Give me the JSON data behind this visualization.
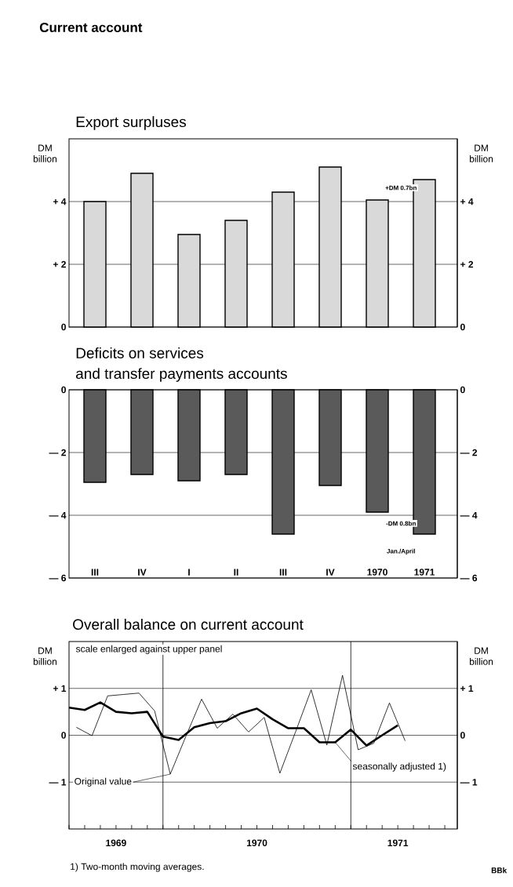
{
  "chart_data": [
    {
      "type": "bar",
      "title": "Current account",
      "subtitle": "Export surpluses",
      "ylabel": "DM billion",
      "y2label": "DM billion",
      "categories": [
        null,
        null,
        null,
        null,
        null,
        null,
        null,
        null
      ],
      "values": [
        4.0,
        4.9,
        2.95,
        3.4,
        4.3,
        5.1,
        4.05,
        4.7
      ],
      "color": "#d9d9d9",
      "ylim": [
        0,
        6
      ],
      "yticks": [
        0,
        {
          "value": 2,
          "label": "+ 2"
        },
        {
          "value": 4,
          "label": "+ 4"
        }
      ],
      "y2lim": [
        0,
        6
      ],
      "y2ticks": [
        0,
        {
          "value": 2,
          "label": "+ 2"
        },
        {
          "value": 4,
          "label": "+ 4"
        }
      ],
      "grid": "y",
      "annotations": [
        "+DM 0.7bn"
      ]
    },
    {
      "type": "bar",
      "title": "Deficits on services",
      "subtitle": "and transfer payments accounts",
      "categories": [
        "III",
        "IV",
        "I",
        "II",
        "III",
        "IV",
        "1970",
        "1971"
      ],
      "values": [
        -2.95,
        -2.7,
        -2.9,
        -2.7,
        -4.6,
        -3.05,
        -3.9,
        -4.6
      ],
      "color": "#5a5a5a",
      "ylim": [
        -6,
        0
      ],
      "yticks": [
        {
          "value": -6,
          "label": "— 6"
        },
        {
          "value": -4,
          "label": "— 4"
        },
        {
          "value": -2,
          "label": "— 2"
        },
        0
      ],
      "y2lim": [
        -6,
        0
      ],
      "y2ticks": [
        {
          "value": -6,
          "label": "— 6"
        },
        {
          "value": -4,
          "label": "— 4"
        },
        {
          "value": -2,
          "label": "— 2"
        },
        0
      ],
      "grid": "y",
      "annotations": [
        "-DM 0.8bn",
        "Jan./April"
      ]
    },
    {
      "type": "line",
      "title": "Overall balance on current account",
      "ylabel": "DM billion",
      "y2label": "DM billion",
      "xlim": [
        "1969-07",
        "1971-07-25"
      ],
      "ylim": [
        -2,
        2
      ],
      "yticks": [
        {
          "value": -1,
          "label": "— 1"
        },
        0,
        {
          "value": 1,
          "label": "+ 1"
        }
      ],
      "y2lim": [
        -2,
        2
      ],
      "y2ticks": [
        {
          "value": -1,
          "label": "— 1"
        },
        0,
        {
          "value": 1,
          "label": "+ 1"
        }
      ],
      "xticks": [
        {
          "value": "1969-07",
          "label": null
        },
        {
          "value": "1969-08",
          "label": null
        },
        {
          "value": "1969-09",
          "label": null
        },
        {
          "value": "1969-10",
          "label": "1969"
        },
        {
          "value": "1969-11",
          "label": null
        },
        {
          "value": "1969-12",
          "label": null
        },
        {
          "value": "1970-01",
          "label": null
        },
        {
          "value": "1970-02",
          "label": null
        },
        {
          "value": "1970-03",
          "label": null
        },
        {
          "value": "1970-04",
          "label": null
        },
        {
          "value": "1970-05",
          "label": null
        },
        {
          "value": "1970-06",
          "label": null
        },
        {
          "value": "1970-07",
          "label": "1970"
        },
        {
          "value": "1970-08",
          "label": null
        },
        {
          "value": "1970-09",
          "label": null
        },
        {
          "value": "1970-10",
          "label": null
        },
        {
          "value": "1970-11",
          "label": null
        },
        {
          "value": "1970-12",
          "label": null
        },
        {
          "value": "1971-01",
          "label": null
        },
        {
          "value": "1971-02",
          "label": null
        },
        {
          "value": "1971-03",
          "label": null
        },
        {
          "value": "1971-04",
          "label": "1971"
        },
        {
          "value": "1971-05",
          "label": null
        },
        {
          "value": "1971-06",
          "label": null
        },
        {
          "value": "1971-07",
          "label": null
        }
      ],
      "grid": "y",
      "ref_lines": [
        {
          "axis": "x",
          "value": "1970-01",
          "color": "#000000"
        },
        {
          "axis": "x",
          "value": "1971-01",
          "color": "#000000"
        }
      ],
      "series": [
        {
          "name": "Original value",
          "color": "#000000",
          "x": [
            "1969-07-15",
            "1969-08-15",
            "1969-09-15",
            "1969-10-15",
            "1969-11-15",
            "1969-12-15",
            "1970-01-15",
            "1970-02-15",
            "1970-03-15",
            "1970-04-15",
            "1970-05-15",
            "1970-06-15",
            "1970-07-15",
            "1970-08-15",
            "1970-09-15",
            "1970-10-15",
            "1970-11-15",
            "1970-12-15",
            "1971-01-15",
            "1971-02-15",
            "1971-03-15",
            "1971-04-15"
          ],
          "values": [
            0.17,
            -0.01,
            0.84,
            0.87,
            0.9,
            0.52,
            -0.83,
            -0.02,
            0.77,
            0.15,
            0.45,
            0.07,
            0.38,
            -0.81,
            0.07,
            0.97,
            -0.21,
            1.28,
            -0.31,
            -0.17,
            0.69,
            -0.12
          ]
        },
        {
          "name": "seasonally adjusted 1)",
          "color": "#000000",
          "x": [
            "1969-07",
            "1969-08",
            "1969-09",
            "1969-10",
            "1969-11",
            "1969-12",
            "1970-01",
            "1970-02",
            "1970-03",
            "1970-04",
            "1970-05",
            "1970-06",
            "1970-07",
            "1970-08",
            "1970-09",
            "1970-10",
            "1970-11",
            "1970-12",
            "1971-01",
            "1971-02",
            "1971-03",
            "1971-04"
          ],
          "values": [
            0.59,
            0.54,
            0.7,
            0.5,
            0.47,
            0.5,
            -0.03,
            -0.1,
            0.17,
            0.26,
            0.3,
            0.47,
            0.57,
            0.34,
            0.15,
            0.15,
            -0.15,
            -0.15,
            0.12,
            -0.22,
            0.0,
            0.21
          ]
        }
      ],
      "annotations": [
        "scale enlarged against upper panel",
        "1) Two-month moving averages.",
        "BBk"
      ]
    }
  ]
}
